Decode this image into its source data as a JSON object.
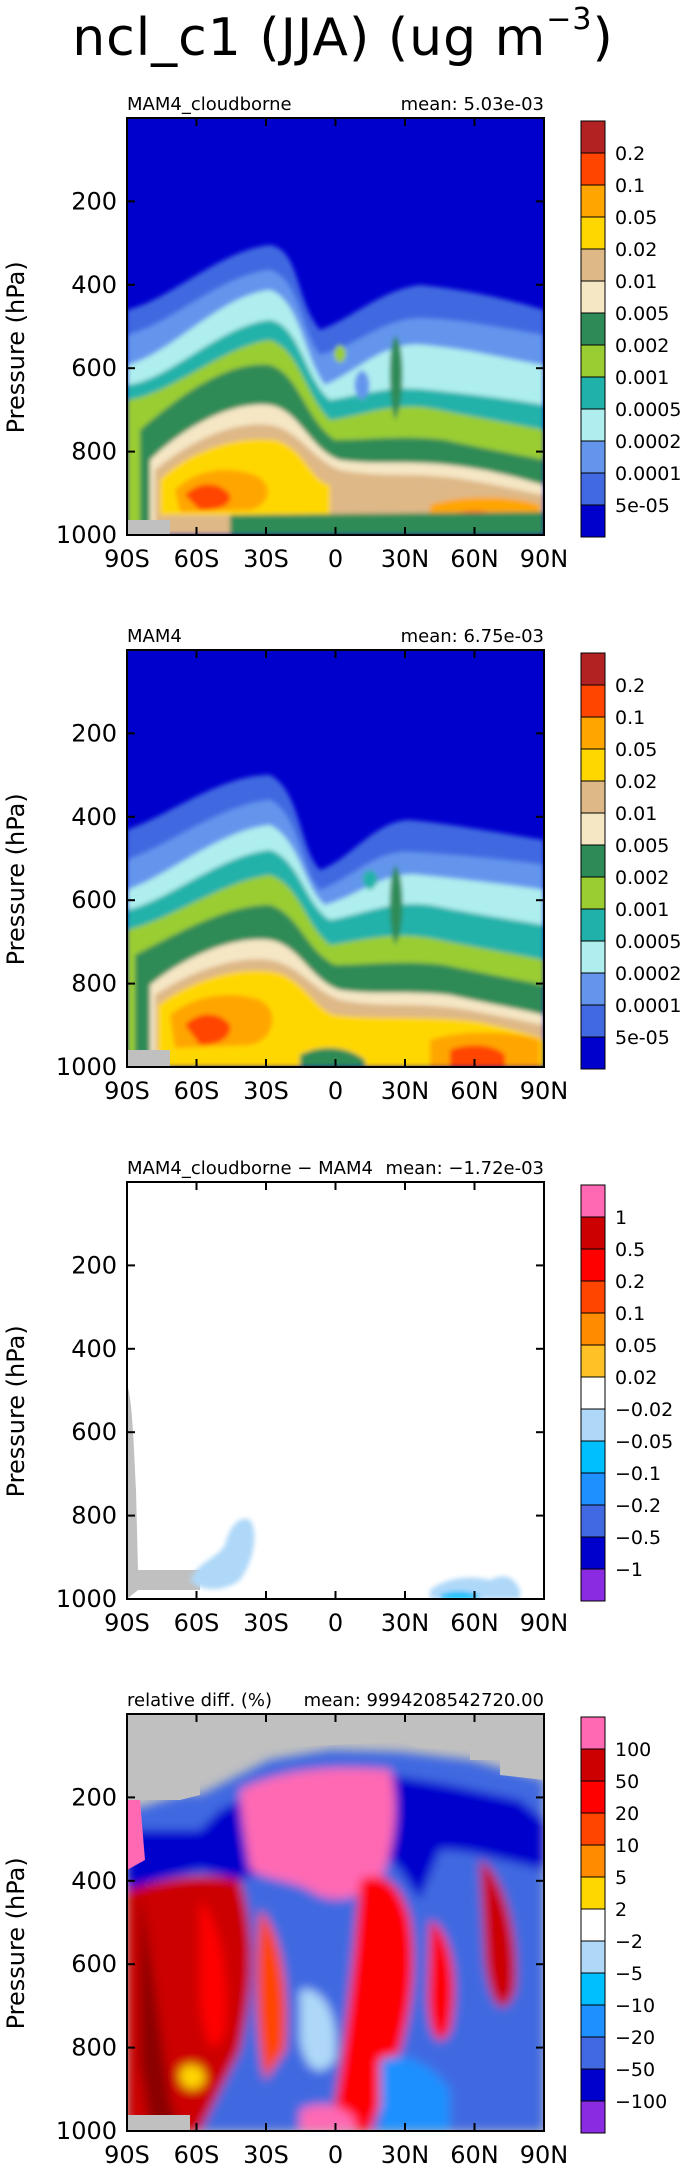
{
  "figure": {
    "title_main": "ncl_c1 (JJA) (ug m",
    "title_exponent": "−3"
  },
  "chart_data": [
    {
      "type": "heatmap",
      "panel_label": "MAM4_cloudborne",
      "mean_text": "mean: 5.03e-03",
      "ylabel": "Pressure (hPa)",
      "x_ticks": [
        "90S",
        "60S",
        "30S",
        "0",
        "30N",
        "60N",
        "90N"
      ],
      "x_tick_values": [
        -90,
        -60,
        -30,
        0,
        30,
        60,
        90
      ],
      "y_ticks": [
        "200",
        "400",
        "600",
        "800",
        "1000"
      ],
      "y_tick_values": [
        200,
        400,
        600,
        800,
        1000
      ],
      "xlim": [
        -90,
        90
      ],
      "ylim": [
        1000,
        0
      ],
      "legend_labels": [
        "0.2",
        "0.1",
        "0.05",
        "0.02",
        "0.01",
        "0.005",
        "0.002",
        "0.001",
        "0.0005",
        "0.0002",
        "0.0001",
        "5e-05"
      ],
      "legend_colors": [
        "#b22222",
        "#ff4500",
        "#ffa500",
        "#ffd700",
        "#deb887",
        "#f5e6c4",
        "#2e8b57",
        "#9acd32",
        "#20b2aa",
        "#afeeee",
        "#6495ed",
        "#4169e1",
        "#0000cd"
      ]
    },
    {
      "type": "heatmap",
      "panel_label": "MAM4",
      "mean_text": "mean: 6.75e-03",
      "ylabel": "Pressure (hPa)",
      "x_ticks": [
        "90S",
        "60S",
        "30S",
        "0",
        "30N",
        "60N",
        "90N"
      ],
      "x_tick_values": [
        -90,
        -60,
        -30,
        0,
        30,
        60,
        90
      ],
      "y_ticks": [
        "200",
        "400",
        "600",
        "800",
        "1000"
      ],
      "y_tick_values": [
        200,
        400,
        600,
        800,
        1000
      ],
      "xlim": [
        -90,
        90
      ],
      "ylim": [
        1000,
        0
      ],
      "legend_labels": [
        "0.2",
        "0.1",
        "0.05",
        "0.02",
        "0.01",
        "0.005",
        "0.002",
        "0.001",
        "0.0005",
        "0.0002",
        "0.0001",
        "5e-05"
      ],
      "legend_colors": [
        "#b22222",
        "#ff4500",
        "#ffa500",
        "#ffd700",
        "#deb887",
        "#f5e6c4",
        "#2e8b57",
        "#9acd32",
        "#20b2aa",
        "#afeeee",
        "#6495ed",
        "#4169e1",
        "#0000cd"
      ]
    },
    {
      "type": "heatmap",
      "panel_label": "MAM4_cloudborne − MAM4",
      "mean_text": "mean: −1.72e-03",
      "ylabel": "Pressure (hPa)",
      "x_ticks": [
        "90S",
        "60S",
        "30S",
        "0",
        "30N",
        "60N",
        "90N"
      ],
      "x_tick_values": [
        -90,
        -60,
        -30,
        0,
        30,
        60,
        90
      ],
      "y_ticks": [
        "200",
        "400",
        "600",
        "800",
        "1000"
      ],
      "y_tick_values": [
        200,
        400,
        600,
        800,
        1000
      ],
      "xlim": [
        -90,
        90
      ],
      "ylim": [
        1000,
        0
      ],
      "legend_labels": [
        "1",
        "0.5",
        "0.2",
        "0.1",
        "0.05",
        "0.02",
        "−0.02",
        "−0.05",
        "−0.1",
        "−0.2",
        "−0.5",
        "−1"
      ],
      "legend_colors": [
        "#ff69b4",
        "#cc0000",
        "#ff0000",
        "#ff4500",
        "#ff8c00",
        "#ffc125",
        "#ffffff",
        "#afd8f8",
        "#00bfff",
        "#1e90ff",
        "#4169e1",
        "#0000cd",
        "#8a2be2"
      ]
    },
    {
      "type": "heatmap",
      "panel_label": "relative diff. (%)",
      "mean_text": "mean: 9994208542720.00",
      "ylabel": "Pressure (hPa)",
      "x_ticks": [
        "90S",
        "60S",
        "30S",
        "0",
        "30N",
        "60N",
        "90N"
      ],
      "x_tick_values": [
        -90,
        -60,
        -30,
        0,
        30,
        60,
        90
      ],
      "y_ticks": [
        "200",
        "400",
        "600",
        "800",
        "1000"
      ],
      "y_tick_values": [
        200,
        400,
        600,
        800,
        1000
      ],
      "xlim": [
        -90,
        90
      ],
      "ylim": [
        1000,
        0
      ],
      "legend_labels": [
        "100",
        "50",
        "20",
        "10",
        "5",
        "2",
        "−2",
        "−5",
        "−10",
        "−20",
        "−50",
        "−100"
      ],
      "legend_colors": [
        "#ff69b4",
        "#cc0000",
        "#ff0000",
        "#ff4500",
        "#ff8c00",
        "#ffd700",
        "#ffffff",
        "#afd8f8",
        "#00bfff",
        "#1e90ff",
        "#4169e1",
        "#0000cd",
        "#8a2be2"
      ]
    }
  ]
}
